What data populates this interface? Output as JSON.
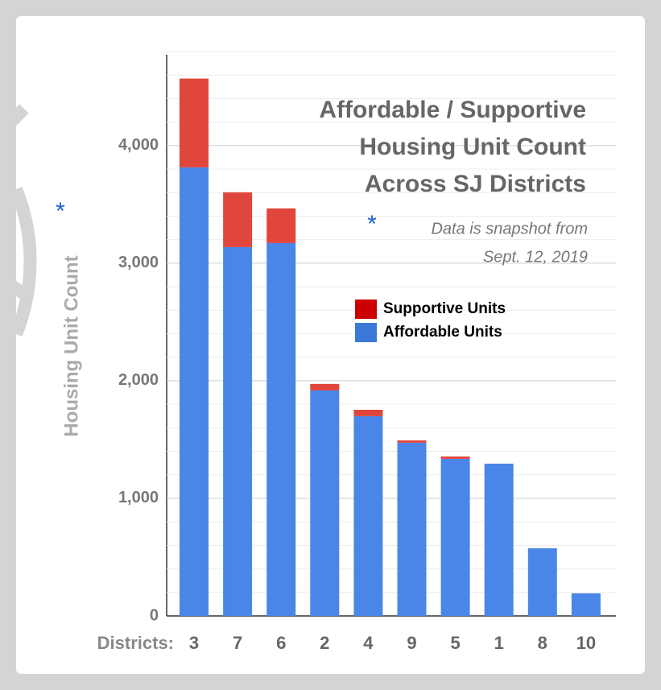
{
  "chart_data": {
    "type": "stacked_bar",
    "title": [
      "Affordable / Supportive",
      "Housing Unit Count",
      "Across SJ Districts"
    ],
    "annotation_marker": "*",
    "annotation": [
      "Data is snapshot from",
      "Sept. 12, 2019"
    ],
    "y_label": "Housing Unit Count",
    "y_label_marker": "*",
    "x_label": "Districts:",
    "categories": [
      "3",
      "7",
      "6",
      "2",
      "4",
      "9",
      "5",
      "1",
      "8",
      "10"
    ],
    "series": [
      {
        "name": "Affordable Units",
        "color": "#4a86e8",
        "legend_color": "#3c78d8",
        "values": [
          3815,
          3137,
          3171,
          1918,
          1699,
          1473,
          1336,
          1295,
          575,
          192
        ]
      },
      {
        "name": "Supportive Units",
        "color": "#e0463b",
        "legend_color": "#cc0000",
        "values": [
          755,
          466,
          295,
          55,
          54,
          20,
          20,
          0,
          0,
          0
        ]
      }
    ],
    "ylim": [
      0,
      4800
    ],
    "yticks": [
      0,
      {
        "value": 1000,
        "label": "1,000"
      },
      {
        "value": 2000,
        "label": "2,000"
      },
      {
        "value": 3000,
        "label": "3,000"
      },
      {
        "value": 4000,
        "label": "4,000"
      }
    ],
    "minor_yticks": [
      200,
      400,
      600,
      800,
      1200,
      1400,
      1600,
      1800,
      2200,
      2400,
      2600,
      2800,
      3200,
      3400,
      3600,
      3800,
      4200,
      4400,
      4600,
      4800
    ],
    "grid": true
  }
}
